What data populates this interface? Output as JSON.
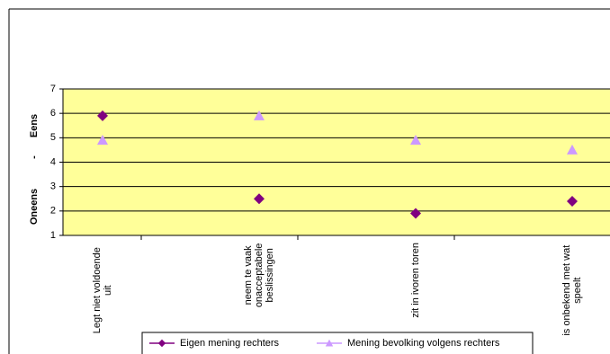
{
  "chart_data": {
    "type": "line",
    "ylabel": [
      "Oneens",
      "-",
      "Eens"
    ],
    "categories": [
      "Legt niet voldoende\nuit",
      "neem te vaak\nonacceptabele\nbeslissingen",
      "zit in ivoren toren",
      "is onbekend met wat\nspeelt"
    ],
    "series": [
      {
        "name": "Eigen mening rechters",
        "color": "#800080",
        "marker": "diamond",
        "values": [
          5.9,
          2.5,
          1.9,
          2.4
        ]
      },
      {
        "name": "Mening bevolking volgens rechters",
        "color": "#cc99ff",
        "marker": "triangle",
        "values": [
          4.9,
          5.9,
          4.9,
          4.5
        ]
      }
    ],
    "ylim": [
      1,
      7
    ],
    "yticks": [
      1,
      2,
      3,
      4,
      5,
      6,
      7
    ],
    "grid": true,
    "background": "#ffff99",
    "legend": "bottom"
  }
}
